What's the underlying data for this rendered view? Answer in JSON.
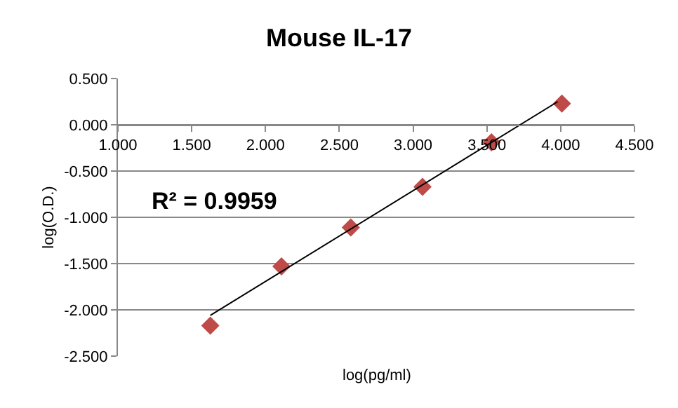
{
  "chart_data": {
    "type": "scatter",
    "title": "Mouse IL-17",
    "xlabel": "log(pg/ml)",
    "ylabel": "log(O.D.)",
    "series": [
      {
        "color": "#be4b48",
        "x": [
          1.626,
          2.108,
          2.578,
          3.064,
          3.531,
          4.008
        ],
        "values": [
          -2.17,
          -1.53,
          -1.11,
          -0.67,
          -0.19,
          0.23
        ],
        "marker": "diamond"
      },
      {
        "type": "line",
        "color": "#000000",
        "x": [
          1.626,
          3.98
        ],
        "values": [
          -2.06,
          0.25
        ]
      }
    ],
    "annotations": [
      "R² = 0.9959"
    ],
    "xlim": [
      1.0,
      4.5
    ],
    "xticks": [
      {
        "value": 1.0,
        "label": "1.000"
      },
      {
        "value": 1.5,
        "label": "1.500"
      },
      {
        "value": 2.0,
        "label": "2.000"
      },
      {
        "value": 2.5,
        "label": "2.500"
      },
      {
        "value": 3.0,
        "label": "3.000"
      },
      {
        "value": 3.5,
        "label": "3.500"
      },
      {
        "value": 4.0,
        "label": "4.000"
      },
      {
        "value": 4.5,
        "label": "4.500"
      }
    ],
    "ylim": [
      -2.5,
      0.5
    ],
    "yticks": [
      {
        "value": -2.5,
        "label": "-2.500"
      },
      {
        "value": -2.0,
        "label": "-2.000"
      },
      {
        "value": -1.5,
        "label": "-1.500"
      },
      {
        "value": -1.0,
        "label": "-1.000"
      },
      {
        "value": -0.5,
        "label": "-0.500"
      },
      {
        "value": 0.0,
        "label": "0.000"
      },
      {
        "value": 0.5,
        "label": "0.500"
      }
    ],
    "grid": "y"
  }
}
